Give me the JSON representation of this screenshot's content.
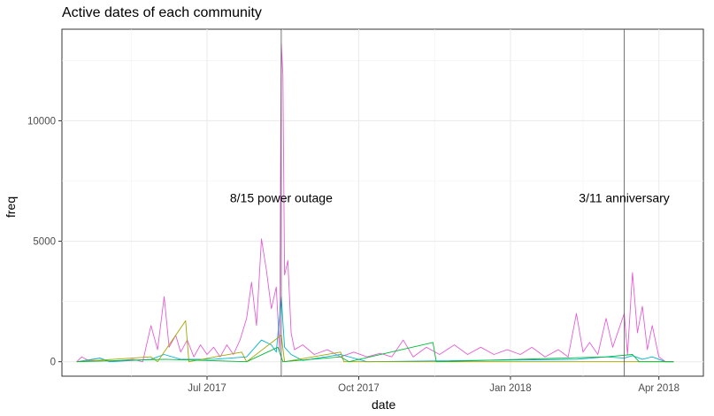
{
  "chart_data": {
    "type": "line",
    "title": "Active dates of each community",
    "xlabel": "date",
    "ylabel": "freq",
    "x_ticks": [
      "Jul 2017",
      "Oct 2017",
      "Jan 2018",
      "Apr 2018"
    ],
    "y_ticks": [
      "0",
      "5000",
      "10000"
    ],
    "ylim": [
      -600,
      13800
    ],
    "xlim": [
      "2017-04-04",
      "2018-04-28"
    ],
    "grid": true,
    "legend": "none",
    "vlines": [
      {
        "date": "2017-08-15",
        "label": "8/15 power outage",
        "label_y": 6800
      },
      {
        "date": "2018-03-11",
        "label": "3/11 anniversary",
        "label_y": 6800
      }
    ],
    "series": [
      {
        "color": "#e55ed4",
        "values": [
          [
            "2017-04-13",
            0
          ],
          [
            "2017-04-16",
            200
          ],
          [
            "2017-04-20",
            50
          ],
          [
            "2017-04-27",
            150
          ],
          [
            "2017-05-03",
            0
          ],
          [
            "2017-05-17",
            100
          ],
          [
            "2017-05-23",
            0
          ],
          [
            "2017-05-28",
            1500
          ],
          [
            "2017-06-01",
            500
          ],
          [
            "2017-06-05",
            2700
          ],
          [
            "2017-06-08",
            600
          ],
          [
            "2017-06-12",
            1100
          ],
          [
            "2017-06-15",
            400
          ],
          [
            "2017-06-19",
            900
          ],
          [
            "2017-06-23",
            200
          ],
          [
            "2017-06-27",
            700
          ],
          [
            "2017-07-01",
            300
          ],
          [
            "2017-07-05",
            600
          ],
          [
            "2017-07-09",
            200
          ],
          [
            "2017-07-13",
            700
          ],
          [
            "2017-07-17",
            300
          ],
          [
            "2017-07-21",
            900
          ],
          [
            "2017-07-25",
            1800
          ],
          [
            "2017-07-28",
            3300
          ],
          [
            "2017-07-31",
            1500
          ],
          [
            "2017-08-03",
            5100
          ],
          [
            "2017-08-06",
            3800
          ],
          [
            "2017-08-09",
            2200
          ],
          [
            "2017-08-12",
            3100
          ],
          [
            "2017-08-14",
            400
          ],
          [
            "2017-08-15",
            13200
          ],
          [
            "2017-08-16",
            11900
          ],
          [
            "2017-08-17",
            3600
          ],
          [
            "2017-08-19",
            4200
          ],
          [
            "2017-08-21",
            1200
          ],
          [
            "2017-08-23",
            500
          ],
          [
            "2017-08-28",
            700
          ],
          [
            "2017-09-04",
            300
          ],
          [
            "2017-09-12",
            500
          ],
          [
            "2017-09-20",
            200
          ],
          [
            "2017-09-28",
            400
          ],
          [
            "2017-10-06",
            200
          ],
          [
            "2017-10-14",
            350
          ],
          [
            "2017-10-21",
            200
          ],
          [
            "2017-10-28",
            900
          ],
          [
            "2017-11-03",
            200
          ],
          [
            "2017-11-11",
            600
          ],
          [
            "2017-11-19",
            300
          ],
          [
            "2017-11-28",
            700
          ],
          [
            "2017-12-06",
            300
          ],
          [
            "2017-12-14",
            600
          ],
          [
            "2017-12-22",
            300
          ],
          [
            "2017-12-30",
            500
          ],
          [
            "2018-01-07",
            300
          ],
          [
            "2018-01-14",
            600
          ],
          [
            "2018-01-22",
            200
          ],
          [
            "2018-01-30",
            500
          ],
          [
            "2018-02-05",
            200
          ],
          [
            "2018-02-10",
            2000
          ],
          [
            "2018-02-14",
            400
          ],
          [
            "2018-02-18",
            800
          ],
          [
            "2018-02-23",
            300
          ],
          [
            "2018-02-28",
            1800
          ],
          [
            "2018-03-04",
            600
          ],
          [
            "2018-03-08",
            1400
          ],
          [
            "2018-03-11",
            2000
          ],
          [
            "2018-03-13",
            300
          ],
          [
            "2018-03-16",
            3700
          ],
          [
            "2018-03-19",
            1200
          ],
          [
            "2018-03-22",
            2300
          ],
          [
            "2018-03-25",
            500
          ],
          [
            "2018-03-28",
            1500
          ],
          [
            "2018-04-01",
            200
          ],
          [
            "2018-04-05",
            0
          ],
          [
            "2018-04-10",
            0
          ]
        ]
      },
      {
        "color": "#00b4c8",
        "values": [
          [
            "2017-04-13",
            0
          ],
          [
            "2017-04-27",
            150
          ],
          [
            "2017-05-03",
            0
          ],
          [
            "2017-05-28",
            100
          ],
          [
            "2017-06-05",
            300
          ],
          [
            "2017-06-15",
            100
          ],
          [
            "2017-07-05",
            100
          ],
          [
            "2017-07-25",
            200
          ],
          [
            "2017-08-03",
            900
          ],
          [
            "2017-08-09",
            700
          ],
          [
            "2017-08-12",
            400
          ],
          [
            "2017-08-15",
            2700
          ],
          [
            "2017-08-17",
            600
          ],
          [
            "2017-08-21",
            300
          ],
          [
            "2017-08-28",
            50
          ],
          [
            "2017-09-20",
            300
          ],
          [
            "2017-10-06",
            0
          ],
          [
            "2018-02-10",
            100
          ],
          [
            "2018-02-28",
            200
          ],
          [
            "2018-03-11",
            150
          ],
          [
            "2018-03-16",
            250
          ],
          [
            "2018-03-22",
            100
          ],
          [
            "2018-03-28",
            200
          ],
          [
            "2018-04-05",
            0
          ],
          [
            "2018-04-10",
            0
          ]
        ]
      },
      {
        "color": "#a3a500",
        "values": [
          [
            "2017-04-13",
            0
          ],
          [
            "2017-05-28",
            200
          ],
          [
            "2017-06-01",
            0
          ],
          [
            "2017-06-18",
            1700
          ],
          [
            "2017-06-20",
            0
          ],
          [
            "2017-07-22",
            400
          ],
          [
            "2017-07-25",
            0
          ],
          [
            "2017-08-15",
            1100
          ],
          [
            "2017-08-17",
            0
          ],
          [
            "2017-09-20",
            400
          ],
          [
            "2017-09-22",
            0
          ],
          [
            "2018-04-10",
            0
          ]
        ]
      },
      {
        "color": "#00ba38",
        "values": [
          [
            "2017-04-13",
            0
          ],
          [
            "2017-06-05",
            100
          ],
          [
            "2017-07-25",
            0
          ],
          [
            "2017-08-13",
            600
          ],
          [
            "2017-08-16",
            0
          ],
          [
            "2017-09-20",
            200
          ],
          [
            "2017-09-25",
            0
          ],
          [
            "2017-11-15",
            800
          ],
          [
            "2017-11-17",
            0
          ],
          [
            "2018-02-28",
            200
          ],
          [
            "2018-03-16",
            300
          ],
          [
            "2018-03-20",
            0
          ],
          [
            "2018-04-10",
            0
          ]
        ]
      }
    ]
  }
}
